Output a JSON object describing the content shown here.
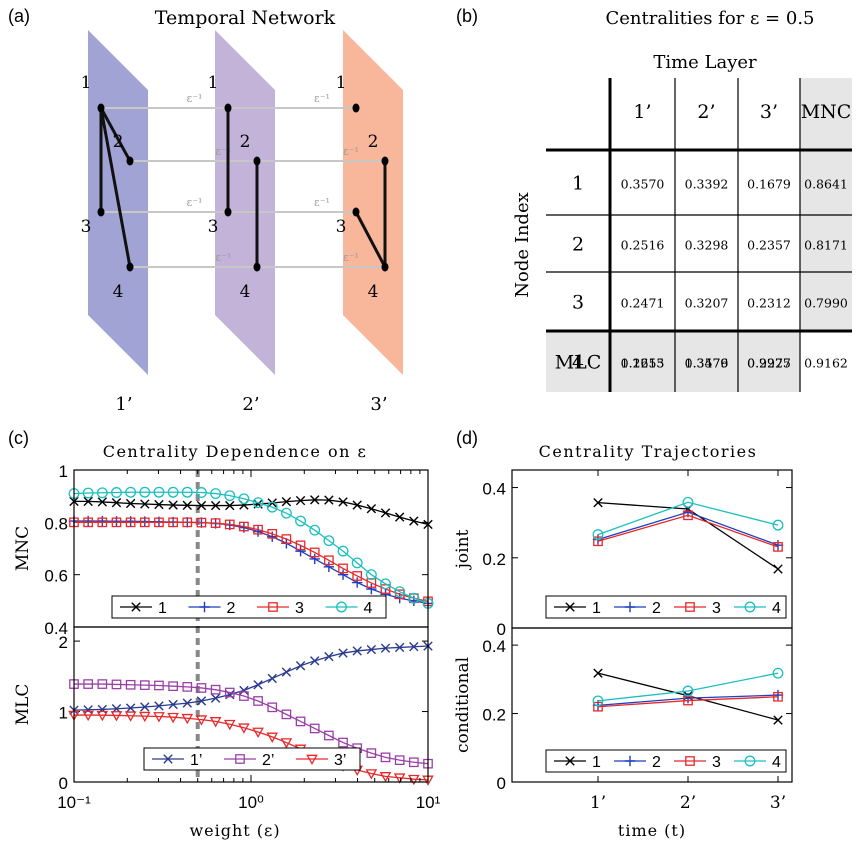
{
  "panel_labels": [
    "(a)",
    "(b)",
    "(c)",
    "(d)"
  ],
  "panel_a": {
    "title": "Temporal Network",
    "layers": [
      "1’",
      "2’",
      "3’"
    ],
    "nodes": [
      "1",
      "2",
      "3",
      "4"
    ],
    "edge_label": "ε⁻¹",
    "layer_colors": [
      "#8f93cb",
      "#b9a6d2",
      "#f7a98a"
    ]
  },
  "panel_b": {
    "title": "Centralities for ε = 0.5",
    "column_group": "Time Layer",
    "row_group": "Node Index",
    "columns": [
      "1’",
      "2’",
      "3’",
      "MNC"
    ],
    "rows": [
      {
        "node": "1",
        "values": [
          "0.3570",
          "0.3392",
          "0.1679"
        ],
        "mnc": "0.8641"
      },
      {
        "node": "2",
        "values": [
          "0.2516",
          "0.3298",
          "0.2357"
        ],
        "mnc": "0.8171"
      },
      {
        "node": "3",
        "values": [
          "0.2471",
          "0.3207",
          "0.2312"
        ],
        "mnc": "0.7990"
      },
      {
        "node": "4",
        "values": [
          "0.2655",
          "0.3579",
          "0.2927"
        ],
        "mnc": "0.9162"
      }
    ],
    "mlc_label": "MLC",
    "mlc": [
      "1.1213",
      "1.3476",
      "0.9275"
    ]
  },
  "chart_data": [
    {
      "type": "line",
      "title": "Centrality Dependence on ε",
      "xlabel": "weight (ε)",
      "xscale": "log",
      "xlim": [
        0.1,
        10
      ],
      "x_ticks": [
        "10⁻¹",
        "10⁰",
        "10¹"
      ],
      "marker_x": 0.5,
      "top": {
        "ylabel": "MNC",
        "ylim": [
          0.4,
          1
        ],
        "y_ticks": [
          "0.4",
          "0.6",
          "0.8",
          "1"
        ],
        "legend_position": "bottom",
        "series": [
          {
            "name": "1",
            "color": "#000000",
            "marker": "x",
            "values": [
              0.88,
              0.88,
              0.878,
              0.875,
              0.872,
              0.87,
              0.868,
              0.866,
              0.865,
              0.864,
              0.864,
              0.864,
              0.866,
              0.87,
              0.874,
              0.879,
              0.883,
              0.886,
              0.885,
              0.878,
              0.866,
              0.852,
              0.836,
              0.82,
              0.805,
              0.792
            ]
          },
          {
            "name": "2",
            "color": "#1f3fbf",
            "marker": "+",
            "values": [
              0.805,
              0.805,
              0.805,
              0.804,
              0.804,
              0.803,
              0.802,
              0.801,
              0.8,
              0.799,
              0.796,
              0.79,
              0.78,
              0.765,
              0.745,
              0.72,
              0.69,
              0.66,
              0.63,
              0.6,
              0.57,
              0.545,
              0.525,
              0.51,
              0.5,
              0.49
            ]
          },
          {
            "name": "3",
            "color": "#e8282a",
            "marker": "square",
            "values": [
              0.8,
              0.8,
              0.8,
              0.8,
              0.8,
              0.8,
              0.8,
              0.8,
              0.8,
              0.799,
              0.797,
              0.792,
              0.784,
              0.772,
              0.756,
              0.736,
              0.712,
              0.685,
              0.655,
              0.624,
              0.595,
              0.568,
              0.545,
              0.525,
              0.51,
              0.498
            ]
          },
          {
            "name": "4",
            "color": "#1bbfbf",
            "marker": "circle",
            "values": [
              0.91,
              0.912,
              0.913,
              0.914,
              0.915,
              0.915,
              0.915,
              0.915,
              0.915,
              0.914,
              0.91,
              0.902,
              0.89,
              0.875,
              0.858,
              0.835,
              0.805,
              0.77,
              0.73,
              0.69,
              0.645,
              0.6,
              0.565,
              0.535,
              0.51,
              0.49
            ]
          }
        ]
      },
      "bottom": {
        "ylabel": "MLC",
        "ylim": [
          0,
          2.2
        ],
        "y_ticks": [
          "0",
          "1",
          "2"
        ],
        "legend_position": "bottom",
        "series": [
          {
            "name": "1’",
            "color": "#2a3a8f",
            "marker": "x",
            "values": [
              1.02,
              1.025,
              1.03,
              1.04,
              1.05,
              1.065,
              1.08,
              1.1,
              1.12,
              1.15,
              1.19,
              1.24,
              1.3,
              1.38,
              1.47,
              1.56,
              1.65,
              1.72,
              1.78,
              1.83,
              1.86,
              1.88,
              1.9,
              1.91,
              1.92,
              1.93
            ]
          },
          {
            "name": "2’",
            "color": "#9b3fa8",
            "marker": "square",
            "values": [
              1.39,
              1.39,
              1.39,
              1.385,
              1.38,
              1.375,
              1.37,
              1.36,
              1.35,
              1.335,
              1.31,
              1.27,
              1.22,
              1.15,
              1.06,
              0.96,
              0.86,
              0.76,
              0.66,
              0.56,
              0.48,
              0.41,
              0.35,
              0.31,
              0.28,
              0.26
            ]
          },
          {
            "name": "3’",
            "color": "#e8282a",
            "marker": "triangle-down",
            "values": [
              0.95,
              0.95,
              0.948,
              0.945,
              0.94,
              0.935,
              0.93,
              0.92,
              0.905,
              0.885,
              0.86,
              0.82,
              0.77,
              0.71,
              0.64,
              0.56,
              0.47,
              0.38,
              0.3,
              0.23,
              0.17,
              0.12,
              0.08,
              0.06,
              0.04,
              0.03
            ]
          }
        ]
      }
    },
    {
      "type": "line",
      "title": "Centrality Trajectories",
      "xlabel": "time (t)",
      "categories": [
        "1’",
        "2’",
        "3’"
      ],
      "top": {
        "ylabel": "joint",
        "ylim": [
          0,
          0.45
        ],
        "y_ticks": [
          "0",
          "0.2",
          "0.4"
        ],
        "legend_position": "bottom",
        "series": [
          {
            "name": "1",
            "color": "#000000",
            "marker": "x",
            "values": [
              0.357,
              0.339,
              0.168
            ]
          },
          {
            "name": "2",
            "color": "#1f3fbf",
            "marker": "+",
            "values": [
              0.252,
              0.33,
              0.236
            ]
          },
          {
            "name": "3",
            "color": "#e8282a",
            "marker": "square",
            "values": [
              0.247,
              0.321,
              0.231
            ]
          },
          {
            "name": "4",
            "color": "#1bbfbf",
            "marker": "circle",
            "values": [
              0.266,
              0.358,
              0.293
            ]
          }
        ]
      },
      "bottom": {
        "ylabel": "conditional",
        "ylim": [
          0,
          0.45
        ],
        "y_ticks": [
          "0",
          "0.2",
          "0.4"
        ],
        "legend_position": "bottom",
        "series": [
          {
            "name": "1",
            "color": "#000000",
            "marker": "x",
            "values": [
              0.318,
              0.252,
              0.181
            ]
          },
          {
            "name": "2",
            "color": "#1f3fbf",
            "marker": "+",
            "values": [
              0.224,
              0.245,
              0.254
            ]
          },
          {
            "name": "3",
            "color": "#e8282a",
            "marker": "square",
            "values": [
              0.22,
              0.238,
              0.249
            ]
          },
          {
            "name": "4",
            "color": "#1bbfbf",
            "marker": "circle",
            "values": [
              0.237,
              0.266,
              0.318
            ]
          }
        ]
      }
    }
  ]
}
